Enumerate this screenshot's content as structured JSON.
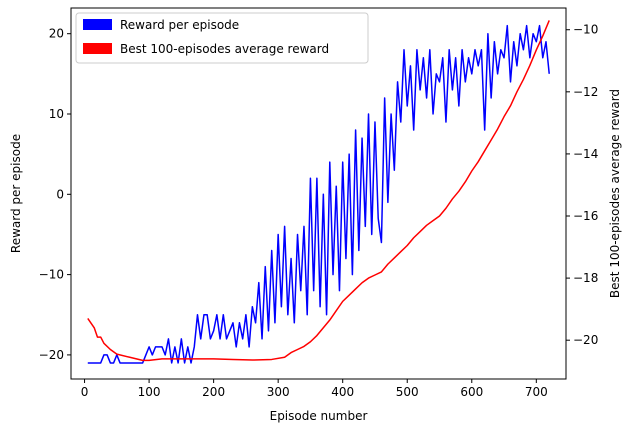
{
  "chart_data": {
    "type": "line",
    "title": "",
    "xlabel": "Episode number",
    "ylabel_left": "Reward per episode",
    "ylabel_right": "Best 100-episodes average reward",
    "xlim": [
      -21,
      746
    ],
    "ylim_left": [
      -23,
      23.2
    ],
    "ylim_right": [
      -21.25,
      -9.3
    ],
    "x_ticks": [
      0,
      100,
      200,
      300,
      400,
      500,
      600,
      700
    ],
    "y_ticks_left": [
      -20,
      -10,
      0,
      10,
      20
    ],
    "y_ticks_right": [
      -20,
      -18,
      -16,
      -14,
      -12,
      -10
    ],
    "grid": false,
    "legend": {
      "placement": "top-left",
      "entries": [
        {
          "label": "Reward per episode",
          "color": "#0000ff"
        },
        {
          "label": "Best 100-episodes average reward",
          "color": "#ff0000"
        }
      ]
    },
    "series": [
      {
        "name": "Reward per episode",
        "axis": "left",
        "color": "#0000ff",
        "points": [
          [
            5,
            -21
          ],
          [
            15,
            -21
          ],
          [
            25,
            -21
          ],
          [
            30,
            -20
          ],
          [
            35,
            -20
          ],
          [
            40,
            -21
          ],
          [
            45,
            -21
          ],
          [
            50,
            -20
          ],
          [
            55,
            -21
          ],
          [
            60,
            -21
          ],
          [
            70,
            -21
          ],
          [
            80,
            -21
          ],
          [
            90,
            -21
          ],
          [
            95,
            -20
          ],
          [
            100,
            -19
          ],
          [
            105,
            -20
          ],
          [
            110,
            -19
          ],
          [
            115,
            -19
          ],
          [
            120,
            -19
          ],
          [
            125,
            -20
          ],
          [
            130,
            -18
          ],
          [
            135,
            -21
          ],
          [
            140,
            -19
          ],
          [
            145,
            -21
          ],
          [
            150,
            -18
          ],
          [
            155,
            -21
          ],
          [
            160,
            -19
          ],
          [
            165,
            -21
          ],
          [
            170,
            -19
          ],
          [
            175,
            -15
          ],
          [
            180,
            -18
          ],
          [
            185,
            -15
          ],
          [
            190,
            -15
          ],
          [
            195,
            -18
          ],
          [
            200,
            -17
          ],
          [
            205,
            -15
          ],
          [
            210,
            -18
          ],
          [
            215,
            -15
          ],
          [
            220,
            -18
          ],
          [
            225,
            -17
          ],
          [
            230,
            -16
          ],
          [
            235,
            -19
          ],
          [
            240,
            -16
          ],
          [
            245,
            -18
          ],
          [
            250,
            -15
          ],
          [
            255,
            -19
          ],
          [
            260,
            -14
          ],
          [
            265,
            -16
          ],
          [
            270,
            -11
          ],
          [
            275,
            -18
          ],
          [
            280,
            -9
          ],
          [
            285,
            -17
          ],
          [
            290,
            -7
          ],
          [
            295,
            -16
          ],
          [
            300,
            -5
          ],
          [
            305,
            -14
          ],
          [
            310,
            -4
          ],
          [
            315,
            -15
          ],
          [
            320,
            -8
          ],
          [
            325,
            -16
          ],
          [
            330,
            -5
          ],
          [
            335,
            -12
          ],
          [
            340,
            -4
          ],
          [
            345,
            -15
          ],
          [
            350,
            2
          ],
          [
            355,
            -12
          ],
          [
            360,
            2
          ],
          [
            365,
            -14
          ],
          [
            370,
            0
          ],
          [
            375,
            -15
          ],
          [
            380,
            4
          ],
          [
            385,
            -10
          ],
          [
            390,
            1
          ],
          [
            395,
            -12
          ],
          [
            400,
            4
          ],
          [
            405,
            -8
          ],
          [
            410,
            5
          ],
          [
            415,
            -10
          ],
          [
            420,
            8
          ],
          [
            425,
            -7
          ],
          [
            430,
            7
          ],
          [
            435,
            -4
          ],
          [
            440,
            10
          ],
          [
            445,
            -5
          ],
          [
            450,
            9
          ],
          [
            455,
            -3
          ],
          [
            460,
            -6
          ],
          [
            465,
            12
          ],
          [
            470,
            -1
          ],
          [
            475,
            10
          ],
          [
            480,
            3
          ],
          [
            485,
            14
          ],
          [
            490,
            9
          ],
          [
            495,
            18
          ],
          [
            500,
            11
          ],
          [
            505,
            16
          ],
          [
            510,
            8
          ],
          [
            515,
            18
          ],
          [
            520,
            13
          ],
          [
            525,
            17
          ],
          [
            530,
            12
          ],
          [
            535,
            18
          ],
          [
            540,
            10
          ],
          [
            545,
            15
          ],
          [
            550,
            14
          ],
          [
            555,
            17
          ],
          [
            560,
            9
          ],
          [
            565,
            18
          ],
          [
            570,
            13
          ],
          [
            575,
            17
          ],
          [
            580,
            11
          ],
          [
            585,
            18
          ],
          [
            590,
            14
          ],
          [
            595,
            17
          ],
          [
            600,
            15
          ],
          [
            605,
            18
          ],
          [
            610,
            16
          ],
          [
            615,
            18
          ],
          [
            620,
            8
          ],
          [
            625,
            20
          ],
          [
            630,
            12
          ],
          [
            635,
            19
          ],
          [
            640,
            15
          ],
          [
            645,
            18
          ],
          [
            650,
            17
          ],
          [
            655,
            21
          ],
          [
            660,
            14
          ],
          [
            665,
            19
          ],
          [
            670,
            16
          ],
          [
            675,
            20
          ],
          [
            680,
            18
          ],
          [
            685,
            21
          ],
          [
            690,
            17
          ],
          [
            695,
            20
          ],
          [
            700,
            19
          ],
          [
            705,
            21
          ],
          [
            710,
            17
          ],
          [
            715,
            19
          ],
          [
            720,
            15
          ]
        ]
      },
      {
        "name": "Best 100-episodes average reward",
        "axis": "right",
        "color": "#ff0000",
        "points": [
          [
            5,
            -19.3
          ],
          [
            15,
            -19.6
          ],
          [
            20,
            -19.9
          ],
          [
            25,
            -19.9
          ],
          [
            30,
            -20.1
          ],
          [
            40,
            -20.3
          ],
          [
            50,
            -20.45
          ],
          [
            70,
            -20.55
          ],
          [
            90,
            -20.65
          ],
          [
            100,
            -20.65
          ],
          [
            120,
            -20.6
          ],
          [
            160,
            -20.6
          ],
          [
            200,
            -20.6
          ],
          [
            230,
            -20.62
          ],
          [
            260,
            -20.64
          ],
          [
            290,
            -20.62
          ],
          [
            310,
            -20.55
          ],
          [
            320,
            -20.4
          ],
          [
            330,
            -20.3
          ],
          [
            340,
            -20.2
          ],
          [
            350,
            -20.05
          ],
          [
            360,
            -19.85
          ],
          [
            370,
            -19.6
          ],
          [
            380,
            -19.35
          ],
          [
            390,
            -19.05
          ],
          [
            400,
            -18.75
          ],
          [
            410,
            -18.55
          ],
          [
            420,
            -18.35
          ],
          [
            430,
            -18.15
          ],
          [
            440,
            -18.0
          ],
          [
            450,
            -17.9
          ],
          [
            460,
            -17.8
          ],
          [
            470,
            -17.55
          ],
          [
            480,
            -17.35
          ],
          [
            490,
            -17.15
          ],
          [
            500,
            -16.95
          ],
          [
            510,
            -16.7
          ],
          [
            520,
            -16.5
          ],
          [
            530,
            -16.3
          ],
          [
            540,
            -16.15
          ],
          [
            550,
            -16.0
          ],
          [
            560,
            -15.75
          ],
          [
            570,
            -15.45
          ],
          [
            580,
            -15.2
          ],
          [
            590,
            -14.9
          ],
          [
            600,
            -14.55
          ],
          [
            610,
            -14.25
          ],
          [
            620,
            -13.9
          ],
          [
            630,
            -13.55
          ],
          [
            640,
            -13.2
          ],
          [
            650,
            -12.8
          ],
          [
            660,
            -12.45
          ],
          [
            670,
            -12.0
          ],
          [
            680,
            -11.6
          ],
          [
            690,
            -11.15
          ],
          [
            700,
            -10.65
          ],
          [
            710,
            -10.2
          ],
          [
            720,
            -9.7
          ]
        ]
      }
    ]
  }
}
